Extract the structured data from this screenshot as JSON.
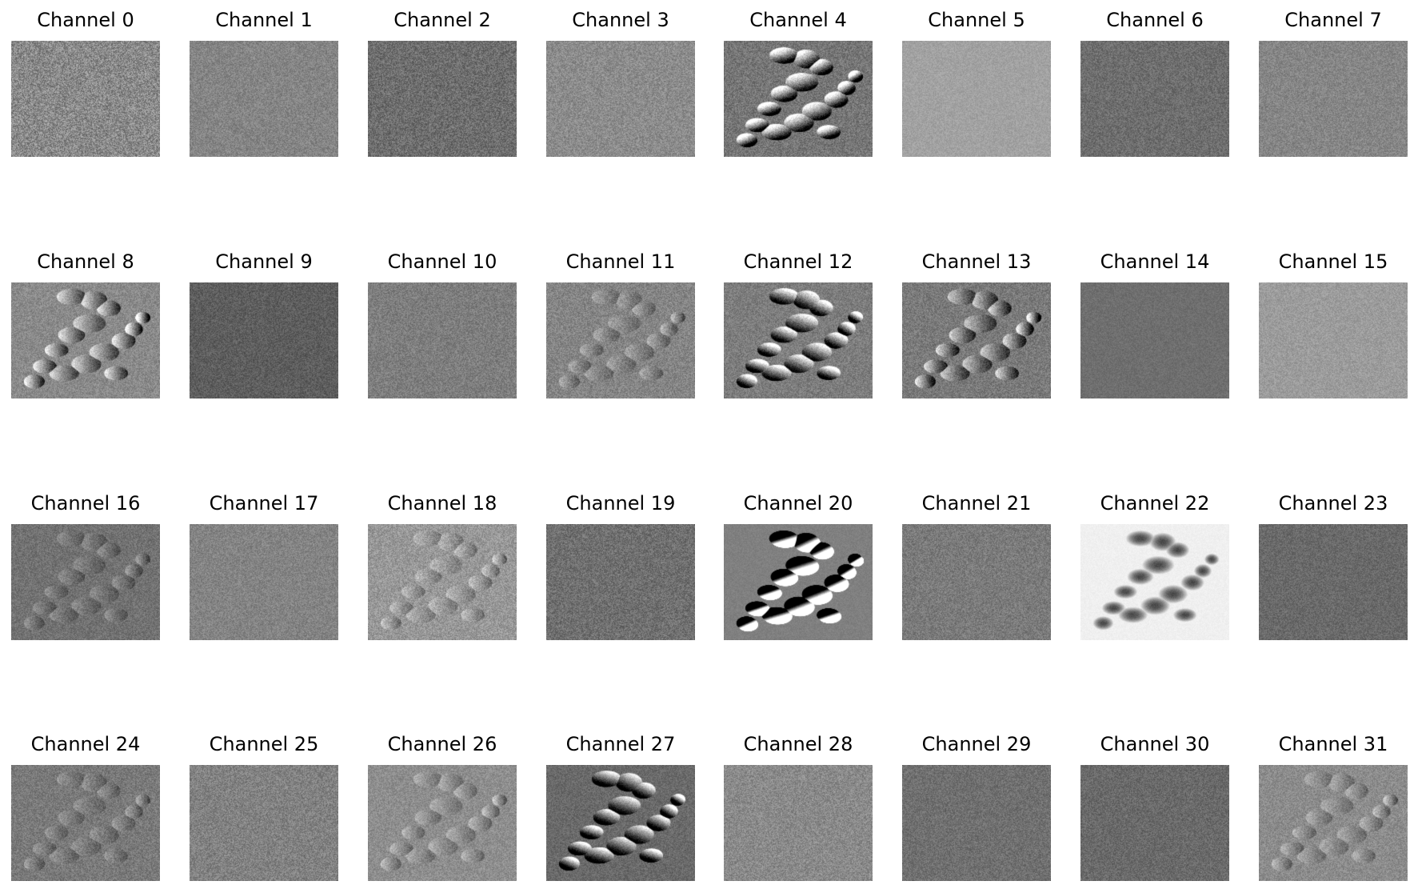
{
  "figure": {
    "panels": [
      {
        "title": "Channel 0",
        "base": "#8a8a8a",
        "noise": 46,
        "feature": "none",
        "feature_strength": 0
      },
      {
        "title": "Channel 1",
        "base": "#858585",
        "noise": 26,
        "feature": "none",
        "feature_strength": 0
      },
      {
        "title": "Channel 2",
        "base": "#6e6e6e",
        "noise": 34,
        "feature": "none",
        "feature_strength": 0
      },
      {
        "title": "Channel 3",
        "base": "#8c8c8c",
        "noise": 28,
        "feature": "none",
        "feature_strength": 0
      },
      {
        "title": "Channel 4",
        "base": "#767676",
        "noise": 30,
        "feature": "blobs",
        "feature_strength": 0.9
      },
      {
        "title": "Channel 5",
        "base": "#a2a2a2",
        "noise": 16,
        "feature": "none",
        "feature_strength": 0
      },
      {
        "title": "Channel 6",
        "base": "#6e6e6e",
        "noise": 26,
        "feature": "none",
        "feature_strength": 0
      },
      {
        "title": "Channel 7",
        "base": "#868686",
        "noise": 24,
        "feature": "none",
        "feature_strength": 0
      },
      {
        "title": "Channel 8",
        "base": "#8a8a8a",
        "noise": 26,
        "feature": "edges",
        "feature_strength": 0.7
      },
      {
        "title": "Channel 9",
        "base": "#5e5e5e",
        "noise": 24,
        "feature": "none",
        "feature_strength": 0
      },
      {
        "title": "Channel 10",
        "base": "#7e7e7e",
        "noise": 26,
        "feature": "none",
        "feature_strength": 0
      },
      {
        "title": "Channel 11",
        "base": "#858585",
        "noise": 28,
        "feature": "edges",
        "feature_strength": 0.3
      },
      {
        "title": "Channel 12",
        "base": "#7d7d7d",
        "noise": 26,
        "feature": "streaks",
        "feature_strength": 0.6
      },
      {
        "title": "Channel 13",
        "base": "#7a7a7a",
        "noise": 28,
        "feature": "edges",
        "feature_strength": 0.7
      },
      {
        "title": "Channel 14",
        "base": "#6f6f6f",
        "noise": 14,
        "feature": "none",
        "feature_strength": 0
      },
      {
        "title": "Channel 15",
        "base": "#9c9c9c",
        "noise": 20,
        "feature": "none",
        "feature_strength": 0
      },
      {
        "title": "Channel 16",
        "base": "#727272",
        "noise": 24,
        "feature": "edges",
        "feature_strength": 0.25
      },
      {
        "title": "Channel 17",
        "base": "#848484",
        "noise": 24,
        "feature": "none",
        "feature_strength": 0
      },
      {
        "title": "Channel 18",
        "base": "#989898",
        "noise": 30,
        "feature": "edges",
        "feature_strength": 0.3
      },
      {
        "title": "Channel 19",
        "base": "#707070",
        "noise": 30,
        "feature": "none",
        "feature_strength": 0
      },
      {
        "title": "Channel 20",
        "base": "#808080",
        "noise": 10,
        "feature": "emboss",
        "feature_strength": 1.0
      },
      {
        "title": "Channel 21",
        "base": "#7b7b7b",
        "noise": 26,
        "feature": "none",
        "feature_strength": 0
      },
      {
        "title": "Channel 22",
        "base": "#f0f0f0",
        "noise": 6,
        "feature": "dark-blobs",
        "feature_strength": 1.0
      },
      {
        "title": "Channel 23",
        "base": "#6a6a6a",
        "noise": 22,
        "feature": "none",
        "feature_strength": 0
      },
      {
        "title": "Channel 24",
        "base": "#7a7a7a",
        "noise": 26,
        "feature": "edges",
        "feature_strength": 0.25
      },
      {
        "title": "Channel 25",
        "base": "#828282",
        "noise": 30,
        "feature": "none",
        "feature_strength": 0
      },
      {
        "title": "Channel 26",
        "base": "#8e8e8e",
        "noise": 24,
        "feature": "edges",
        "feature_strength": 0.3
      },
      {
        "title": "Channel 27",
        "base": "#6a6a6a",
        "noise": 22,
        "feature": "streaks",
        "feature_strength": 0.6
      },
      {
        "title": "Channel 28",
        "base": "#8a8a8a",
        "noise": 28,
        "feature": "none",
        "feature_strength": 0
      },
      {
        "title": "Channel 29",
        "base": "#707070",
        "noise": 24,
        "feature": "none",
        "feature_strength": 0
      },
      {
        "title": "Channel 30",
        "base": "#6a6a6a",
        "noise": 24,
        "feature": "none",
        "feature_strength": 0
      },
      {
        "title": "Channel 31",
        "base": "#8c8c8c",
        "noise": 24,
        "feature": "edges",
        "feature_strength": 0.3
      }
    ]
  }
}
